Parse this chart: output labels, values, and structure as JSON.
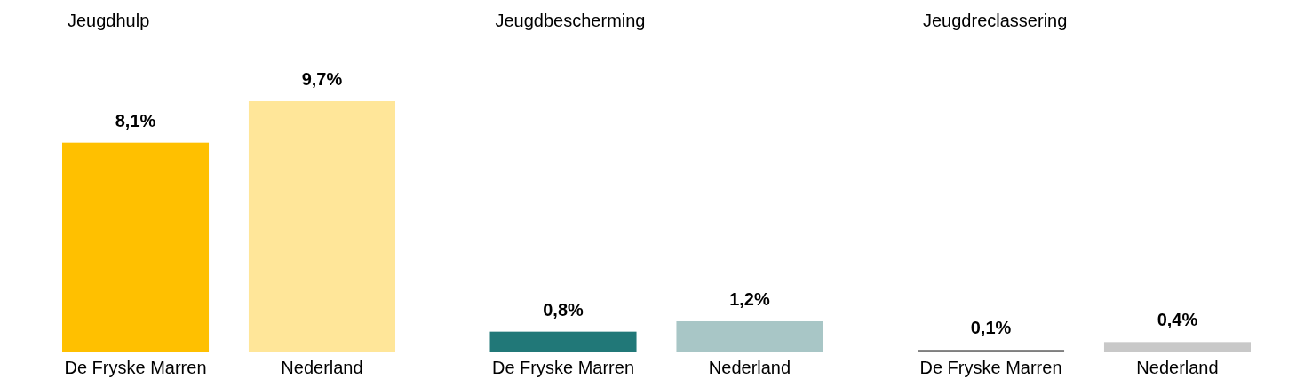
{
  "chart_data": [
    {
      "type": "bar",
      "title": "Jeugdhulp",
      "categories": [
        "De Fryske Marren",
        "Nederland"
      ],
      "values": [
        8.1,
        9.7
      ],
      "colors": [
        "#ffc000",
        "#ffe699"
      ],
      "value_labels": [
        "8,1%",
        "9,7%"
      ]
    },
    {
      "type": "bar",
      "title": "Jeugdbescherming",
      "categories": [
        "De Fryske Marren",
        "Nederland"
      ],
      "values": [
        0.8,
        1.2
      ],
      "colors": [
        "#217878",
        "#a8c6c6"
      ],
      "value_labels": [
        "0,8%",
        "1,2%"
      ]
    },
    {
      "type": "bar",
      "title": "Jeugdreclassering",
      "categories": [
        "De Fryske Marren",
        "Nederland"
      ],
      "values": [
        0.1,
        0.4
      ],
      "colors": [
        "#7f7f7f",
        "#c8c8c8"
      ],
      "value_labels": [
        "0,1%",
        "0,4%"
      ]
    }
  ]
}
